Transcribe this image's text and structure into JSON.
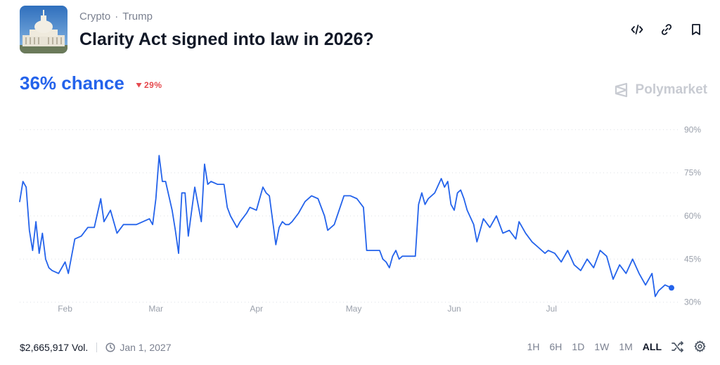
{
  "header": {
    "category": "Crypto",
    "subcategory": "Trump",
    "title": "Clarity Act signed into law in 2026?",
    "icons": [
      "embed-code-icon",
      "link-icon",
      "bookmark-icon"
    ]
  },
  "summary": {
    "chance_text": "36% chance",
    "change_text": "29%",
    "change_direction": "down",
    "change_color": "#e5484d",
    "brand": "Polymarket"
  },
  "footer": {
    "volume": "$2,665,917 Vol.",
    "end_date": "Jan 1, 2027",
    "timeframes": [
      "1H",
      "6H",
      "1D",
      "1W",
      "1M",
      "ALL"
    ],
    "active_timeframe": "ALL"
  },
  "chart_data": {
    "type": "line",
    "x_ticks": [
      "Feb",
      "Mar",
      "Apr",
      "May",
      "Jun",
      "Jul"
    ],
    "y_ticks": [
      "90%",
      "75%",
      "60%",
      "45%",
      "30%"
    ],
    "ylim": [
      27,
      94
    ],
    "grid": "dotted horizontal",
    "series": [
      {
        "color": "#2463eb",
        "points": [
          [
            "2026-01-18",
            65
          ],
          [
            "2026-01-19",
            72
          ],
          [
            "2026-01-20",
            70
          ],
          [
            "2026-01-21",
            55
          ],
          [
            "2026-01-22",
            48
          ],
          [
            "2026-01-23",
            58
          ],
          [
            "2026-01-24",
            47
          ],
          [
            "2026-01-25",
            54
          ],
          [
            "2026-01-26",
            45
          ],
          [
            "2026-01-27",
            42
          ],
          [
            "2026-01-28",
            41
          ],
          [
            "2026-01-30",
            40
          ],
          [
            "2026-02-01",
            44
          ],
          [
            "2026-02-02",
            40
          ],
          [
            "2026-02-04",
            52
          ],
          [
            "2026-02-06",
            53
          ],
          [
            "2026-02-08",
            56
          ],
          [
            "2026-02-10",
            56
          ],
          [
            "2026-02-12",
            66
          ],
          [
            "2026-02-13",
            58
          ],
          [
            "2026-02-15",
            62
          ],
          [
            "2026-02-17",
            54
          ],
          [
            "2026-02-19",
            57
          ],
          [
            "2026-02-21",
            57
          ],
          [
            "2026-02-23",
            57
          ],
          [
            "2026-02-25",
            58
          ],
          [
            "2026-02-27",
            59
          ],
          [
            "2026-02-28",
            57
          ],
          [
            "2026-03-01",
            66
          ],
          [
            "2026-03-02",
            81
          ],
          [
            "2026-03-03",
            72
          ],
          [
            "2026-03-04",
            72
          ],
          [
            "2026-03-06",
            62
          ],
          [
            "2026-03-07",
            55
          ],
          [
            "2026-03-08",
            47
          ],
          [
            "2026-03-09",
            68
          ],
          [
            "2026-03-10",
            68
          ],
          [
            "2026-03-11",
            53
          ],
          [
            "2026-03-13",
            70
          ],
          [
            "2026-03-15",
            58
          ],
          [
            "2026-03-16",
            78
          ],
          [
            "2026-03-17",
            71
          ],
          [
            "2026-03-18",
            72
          ],
          [
            "2026-03-20",
            71
          ],
          [
            "2026-03-22",
            71
          ],
          [
            "2026-03-23",
            63
          ],
          [
            "2026-03-24",
            60
          ],
          [
            "2026-03-26",
            56
          ],
          [
            "2026-03-27",
            58
          ],
          [
            "2026-03-29",
            61
          ],
          [
            "2026-03-30",
            63
          ],
          [
            "2026-04-01",
            62
          ],
          [
            "2026-04-03",
            70
          ],
          [
            "2026-04-04",
            68
          ],
          [
            "2026-04-05",
            67
          ],
          [
            "2026-04-07",
            50
          ],
          [
            "2026-04-08",
            56
          ],
          [
            "2026-04-09",
            58
          ],
          [
            "2026-04-10",
            57
          ],
          [
            "2026-04-11",
            57
          ],
          [
            "2026-04-12",
            58
          ],
          [
            "2026-04-14",
            61
          ],
          [
            "2026-04-16",
            65
          ],
          [
            "2026-04-18",
            67
          ],
          [
            "2026-04-20",
            66
          ],
          [
            "2026-04-22",
            60
          ],
          [
            "2026-04-23",
            55
          ],
          [
            "2026-04-25",
            57
          ],
          [
            "2026-04-28",
            67
          ],
          [
            "2026-04-30",
            67
          ],
          [
            "2026-05-02",
            66
          ],
          [
            "2026-05-04",
            63
          ],
          [
            "2026-05-05",
            48
          ],
          [
            "2026-05-07",
            48
          ],
          [
            "2026-05-09",
            48
          ],
          [
            "2026-05-10",
            45
          ],
          [
            "2026-05-11",
            44
          ],
          [
            "2026-05-12",
            42
          ],
          [
            "2026-05-13",
            46
          ],
          [
            "2026-05-14",
            48
          ],
          [
            "2026-05-15",
            45
          ],
          [
            "2026-05-16",
            46
          ],
          [
            "2026-05-18",
            46
          ],
          [
            "2026-05-20",
            46
          ],
          [
            "2026-05-21",
            64
          ],
          [
            "2026-05-22",
            68
          ],
          [
            "2026-05-23",
            64
          ],
          [
            "2026-05-24",
            66
          ],
          [
            "2026-05-26",
            68
          ],
          [
            "2026-05-28",
            73
          ],
          [
            "2026-05-29",
            70
          ],
          [
            "2026-05-30",
            72
          ],
          [
            "2026-05-31",
            64
          ],
          [
            "2026-06-01",
            62
          ],
          [
            "2026-06-02",
            68
          ],
          [
            "2026-06-03",
            69
          ],
          [
            "2026-06-04",
            66
          ],
          [
            "2026-06-05",
            62
          ],
          [
            "2026-06-07",
            57
          ],
          [
            "2026-06-08",
            51
          ],
          [
            "2026-06-10",
            59
          ],
          [
            "2026-06-12",
            56
          ],
          [
            "2026-06-14",
            60
          ],
          [
            "2026-06-16",
            54
          ],
          [
            "2026-06-18",
            55
          ],
          [
            "2026-06-20",
            52
          ],
          [
            "2026-06-21",
            58
          ],
          [
            "2026-06-23",
            54
          ],
          [
            "2026-06-25",
            51
          ],
          [
            "2026-06-27",
            49
          ],
          [
            "2026-06-29",
            47
          ],
          [
            "2026-06-30",
            48
          ],
          [
            "2026-07-02",
            47
          ],
          [
            "2026-07-04",
            44
          ],
          [
            "2026-07-06",
            48
          ],
          [
            "2026-07-08",
            43
          ],
          [
            "2026-07-10",
            41
          ],
          [
            "2026-07-12",
            45
          ],
          [
            "2026-07-14",
            42
          ],
          [
            "2026-07-16",
            48
          ],
          [
            "2026-07-18",
            46
          ],
          [
            "2026-07-20",
            38
          ],
          [
            "2026-07-22",
            43
          ],
          [
            "2026-07-24",
            40
          ],
          [
            "2026-07-26",
            45
          ],
          [
            "2026-07-28",
            40
          ],
          [
            "2026-07-30",
            36
          ],
          [
            "2026-08-01",
            40
          ],
          [
            "2026-08-02",
            32
          ],
          [
            "2026-08-03",
            34
          ],
          [
            "2026-08-05",
            36
          ],
          [
            "2026-08-07",
            35
          ]
        ]
      }
    ]
  }
}
